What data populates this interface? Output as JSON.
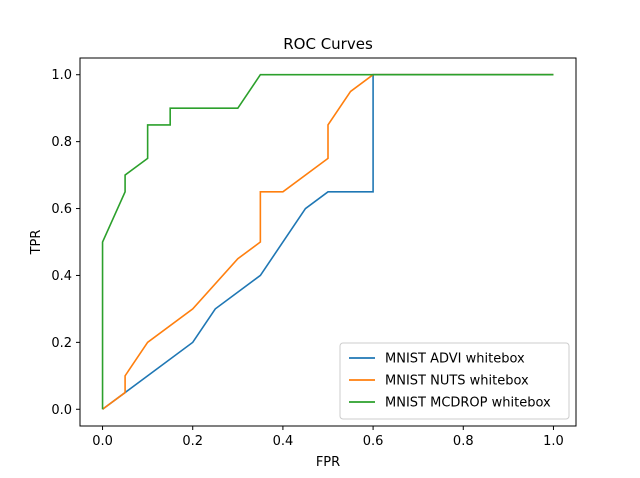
{
  "chart_data": {
    "type": "line",
    "title": "ROC Curves",
    "xlabel": "FPR",
    "ylabel": "TPR",
    "xlim": [
      -0.05,
      1.05
    ],
    "ylim": [
      -0.05,
      1.05
    ],
    "xticks": [
      "0.0",
      "0.2",
      "0.4",
      "0.6",
      "0.8",
      "1.0"
    ],
    "yticks": [
      "0.0",
      "0.2",
      "0.4",
      "0.6",
      "0.8",
      "1.0"
    ],
    "grid": false,
    "legend_position": "lower-right",
    "series": [
      {
        "name": "MNIST ADVI whitebox",
        "color": "#1f77b4",
        "x": [
          0.0,
          0.05,
          0.2,
          0.25,
          0.35,
          0.45,
          0.5,
          0.6,
          0.6,
          1.0
        ],
        "y": [
          0.0,
          0.05,
          0.2,
          0.3,
          0.4,
          0.6,
          0.65,
          0.65,
          1.0,
          1.0
        ]
      },
      {
        "name": "MNIST NUTS whitebox",
        "color": "#ff7f0e",
        "x": [
          0.0,
          0.05,
          0.05,
          0.1,
          0.2,
          0.3,
          0.35,
          0.35,
          0.4,
          0.5,
          0.5,
          0.55,
          0.6,
          1.0
        ],
        "y": [
          0.0,
          0.05,
          0.1,
          0.2,
          0.3,
          0.45,
          0.5,
          0.65,
          0.65,
          0.75,
          0.85,
          0.95,
          1.0,
          1.0
        ]
      },
      {
        "name": "MNIST MCDROP whitebox",
        "color": "#2ca02c",
        "x": [
          0.0,
          0.0,
          0.05,
          0.05,
          0.1,
          0.1,
          0.15,
          0.15,
          0.3,
          0.35,
          1.0
        ],
        "y": [
          0.0,
          0.5,
          0.65,
          0.7,
          0.75,
          0.85,
          0.85,
          0.9,
          0.9,
          1.0,
          1.0
        ]
      }
    ]
  }
}
